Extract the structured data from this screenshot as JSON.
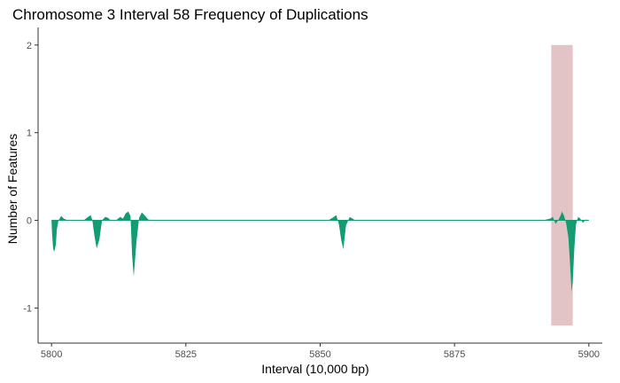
{
  "chart_data": {
    "type": "area",
    "title": "Chromosome 3 Interval 58 Frequency of Duplications",
    "xlabel": "Interval (10,000 bp)",
    "ylabel": "Number of Features",
    "xlim": [
      5797.5,
      5902.5
    ],
    "ylim": [
      -1.4,
      2.2
    ],
    "x_ticks": [
      5800,
      5825,
      5850,
      5875,
      5900
    ],
    "x_tick_labels": [
      "5800",
      "5825",
      "5850",
      "5875",
      "5900"
    ],
    "y_ticks": [
      -1,
      0,
      1,
      2
    ],
    "y_tick_labels": [
      "-1",
      "0",
      "1",
      "2"
    ],
    "grid": false,
    "highlight_region": {
      "x": [
        5893,
        5897
      ],
      "y": [
        -1.2,
        2
      ],
      "color": "#e3c4c6"
    },
    "series": [
      {
        "color": "#139b72",
        "x": [
          5800,
          5800.1,
          5800.3,
          5800.5,
          5800.8,
          5801,
          5801.3,
          5801.8,
          5802.3,
          5803,
          5804,
          5806,
          5806.8,
          5807.3,
          5807.6,
          5808,
          5808.4,
          5808.9,
          5809.4,
          5810,
          5810.5,
          5811,
          5812,
          5812.8,
          5813.3,
          5813.8,
          5814.3,
          5814.7,
          5815,
          5815.3,
          5815.8,
          5816.3,
          5816.8,
          5817.3,
          5818,
          5818.8,
          5851.5,
          5852.3,
          5853,
          5853.5,
          5853.9,
          5854.3,
          5854.8,
          5855.5,
          5856.5,
          5891.5,
          5892.8,
          5893.3,
          5893.8,
          5894.3,
          5894.7,
          5895,
          5895.4,
          5895.8,
          5896.2,
          5896.5,
          5896.8,
          5897,
          5897.3,
          5897.6,
          5898,
          5898.4,
          5898.9,
          5899.4,
          5900
        ],
        "y": [
          0,
          -0.15,
          -0.32,
          -0.36,
          -0.28,
          -0.1,
          0,
          0.05,
          0.02,
          0,
          0,
          0,
          0.04,
          0.06,
          0,
          -0.18,
          -0.32,
          -0.22,
          0,
          0.04,
          0.03,
          0,
          0,
          0.04,
          0.02,
          0.08,
          0.1,
          0.05,
          -0.4,
          -0.64,
          -0.25,
          0.03,
          0.09,
          0.06,
          0.01,
          0,
          0,
          0.03,
          0.06,
          -0.05,
          -0.22,
          -0.33,
          -0.06,
          0.04,
          0,
          0,
          0.02,
          0.04,
          -0.04,
          0,
          0.05,
          0.1,
          0.05,
          -0.04,
          -0.2,
          -0.5,
          -0.82,
          -0.7,
          -0.32,
          -0.05,
          0.04,
          0.02,
          -0.03,
          0.01,
          0
        ]
      }
    ]
  }
}
